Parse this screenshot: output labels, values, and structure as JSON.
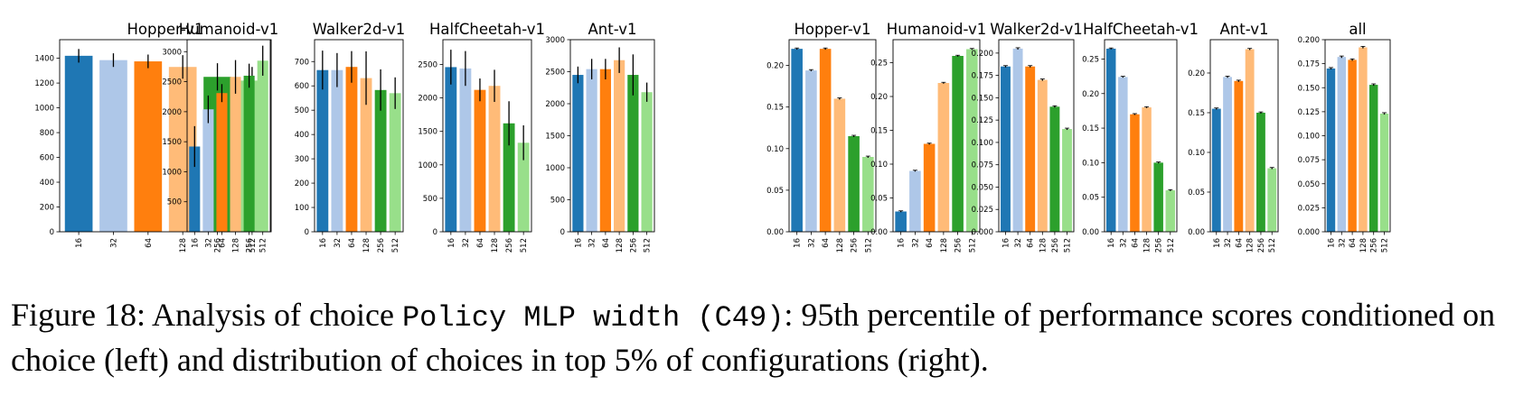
{
  "caption": {
    "prefix": "Figure 18: Analysis of choice ",
    "code": "Policy MLP width (C49)",
    "suffix": ": 95th percentile of performance scores conditioned on choice (left) and distribution of choices in top 5% of configurations (right)."
  },
  "colors": [
    "#1f77b4",
    "#aec7e8",
    "#ff7f0e",
    "#ffbb78",
    "#2ca02c",
    "#98df8a"
  ],
  "chart_data": [
    {
      "type": "bar",
      "title": "Hopper-v1",
      "categories": [
        "16",
        "32",
        "64",
        "128",
        "256",
        "512"
      ],
      "values": [
        1420,
        1385,
        1375,
        1330,
        1250,
        1220
      ],
      "err": [
        55,
        55,
        55,
        95,
        110,
        110
      ],
      "ylim": [
        0,
        1550
      ],
      "yticks": [
        0,
        200,
        400,
        600,
        800,
        1000,
        1200,
        1400
      ],
      "ytick_labels": [
        "0",
        "200",
        "400",
        "600",
        "800",
        "1000",
        "1200",
        "1400"
      ]
    },
    {
      "type": "bar",
      "title": "Humanoid-v1",
      "categories": [
        "16",
        "32",
        "64",
        "128",
        "256",
        "512"
      ],
      "values": [
        1420,
        2040,
        2310,
        2580,
        2600,
        2850
      ],
      "err": [
        340,
        230,
        150,
        280,
        200,
        250
      ],
      "ylim": [
        0,
        3200
      ],
      "yticks": [
        500,
        1000,
        1500,
        2000,
        2500,
        3000
      ],
      "ytick_labels": [
        "500",
        "1000",
        "1500",
        "2000",
        "2500",
        "3000"
      ]
    },
    {
      "type": "bar",
      "title": "Walker2d-v1",
      "categories": [
        "16",
        "32",
        "64",
        "128",
        "256",
        "512"
      ],
      "values": [
        665,
        665,
        678,
        632,
        583,
        570
      ],
      "err": [
        80,
        70,
        65,
        110,
        85,
        65
      ],
      "ylim": [
        0,
        790
      ],
      "yticks": [
        0,
        100,
        200,
        300,
        400,
        500,
        600,
        700
      ],
      "ytick_labels": [
        "0",
        "100",
        "200",
        "300",
        "400",
        "500",
        "600",
        "700"
      ]
    },
    {
      "type": "bar",
      "title": "HalfCheetah-v1",
      "categories": [
        "16",
        "32",
        "64",
        "128",
        "256",
        "512"
      ],
      "values": [
        2460,
        2440,
        2120,
        2180,
        1620,
        1330
      ],
      "err": [
        260,
        260,
        170,
        240,
        330,
        260
      ],
      "ylim": [
        0,
        2870
      ],
      "yticks": [
        0,
        500,
        1000,
        1500,
        2000,
        2500
      ],
      "ytick_labels": [
        "0",
        "500",
        "1000",
        "1500",
        "2000",
        "2500"
      ]
    },
    {
      "type": "bar",
      "title": "Ant-v1",
      "categories": [
        "16",
        "32",
        "64",
        "128",
        "256",
        "512"
      ],
      "values": [
        2450,
        2540,
        2540,
        2680,
        2450,
        2180
      ],
      "err": [
        130,
        160,
        160,
        200,
        320,
        150
      ],
      "ylim": [
        0,
        3000
      ],
      "yticks": [
        0,
        500,
        1000,
        1500,
        2000,
        2500,
        3000
      ],
      "ytick_labels": [
        "0",
        "500",
        "1000",
        "1500",
        "2000",
        "2500",
        "3000"
      ]
    },
    {
      "type": "bar",
      "title": "Hopper-v1",
      "categories": [
        "16",
        "32",
        "64",
        "128",
        "256",
        "512"
      ],
      "values": [
        0.22,
        0.194,
        0.22,
        0.16,
        0.115,
        0.09
      ],
      "err": [
        0.001,
        0.001,
        0.001,
        0.001,
        0.001,
        0.001
      ],
      "ylim": [
        0,
        0.231
      ],
      "yticks": [
        0,
        0.05,
        0.1,
        0.15,
        0.2
      ],
      "ytick_labels": [
        "0.00",
        "0.05",
        "0.10",
        "0.15",
        "0.20"
      ]
    },
    {
      "type": "bar",
      "title": "Humanoid-v1",
      "categories": [
        "16",
        "32",
        "64",
        "128",
        "256",
        "512"
      ],
      "values": [
        0.03,
        0.09,
        0.13,
        0.22,
        0.26,
        0.27
      ],
      "err": [
        0.001,
        0.001,
        0.001,
        0.001,
        0.001,
        0.001
      ],
      "ylim": [
        0,
        0.284
      ],
      "yticks": [
        0,
        0.05,
        0.1,
        0.15,
        0.2,
        0.25
      ],
      "ytick_labels": [
        "0.00",
        "0.05",
        "0.10",
        "0.15",
        "0.20",
        "0.25"
      ]
    },
    {
      "type": "bar",
      "title": "Walker2d-v1",
      "categories": [
        "16",
        "32",
        "64",
        "128",
        "256",
        "512"
      ],
      "values": [
        0.185,
        0.205,
        0.185,
        0.17,
        0.14,
        0.115
      ],
      "err": [
        0.001,
        0.001,
        0.001,
        0.001,
        0.001,
        0.001
      ],
      "ylim": [
        0,
        0.215
      ],
      "yticks": [
        0,
        0.025,
        0.05,
        0.075,
        0.1,
        0.125,
        0.15,
        0.175,
        0.2
      ],
      "ytick_labels": [
        "0.000",
        "0.025",
        "0.050",
        "0.075",
        "0.100",
        "0.125",
        "0.150",
        "0.175",
        "0.200"
      ]
    },
    {
      "type": "bar",
      "title": "HalfCheetah-v1",
      "categories": [
        "16",
        "32",
        "64",
        "128",
        "256",
        "512"
      ],
      "values": [
        0.265,
        0.224,
        0.17,
        0.18,
        0.1,
        0.06
      ],
      "err": [
        0.001,
        0.001,
        0.001,
        0.001,
        0.001,
        0.001
      ],
      "ylim": [
        0,
        0.278
      ],
      "yticks": [
        0,
        0.05,
        0.1,
        0.15,
        0.2,
        0.25
      ],
      "ytick_labels": [
        "0.00",
        "0.05",
        "0.10",
        "0.15",
        "0.20",
        "0.25"
      ]
    },
    {
      "type": "bar",
      "title": "Ant-v1",
      "categories": [
        "16",
        "32",
        "64",
        "128",
        "256",
        "512"
      ],
      "values": [
        0.155,
        0.195,
        0.19,
        0.23,
        0.15,
        0.08
      ],
      "err": [
        0.001,
        0.001,
        0.001,
        0.001,
        0.001,
        0.001
      ],
      "ylim": [
        0,
        0.242
      ],
      "yticks": [
        0,
        0.05,
        0.1,
        0.15,
        0.2
      ],
      "ytick_labels": [
        "0.00",
        "0.05",
        "0.10",
        "0.15",
        "0.20"
      ]
    },
    {
      "type": "bar",
      "title": "all",
      "categories": [
        "16",
        "32",
        "64",
        "128",
        "256",
        "512"
      ],
      "values": [
        0.17,
        0.182,
        0.179,
        0.192,
        0.153,
        0.123
      ],
      "err": [
        0.001,
        0.001,
        0.001,
        0.001,
        0.001,
        0.001
      ],
      "ylim": [
        0,
        0.2
      ],
      "yticks": [
        0,
        0.025,
        0.05,
        0.075,
        0.1,
        0.125,
        0.15,
        0.175,
        0.2
      ],
      "ytick_labels": [
        "0.000",
        "0.025",
        "0.050",
        "0.075",
        "0.100",
        "0.125",
        "0.150",
        "0.175",
        "0.200"
      ]
    }
  ]
}
